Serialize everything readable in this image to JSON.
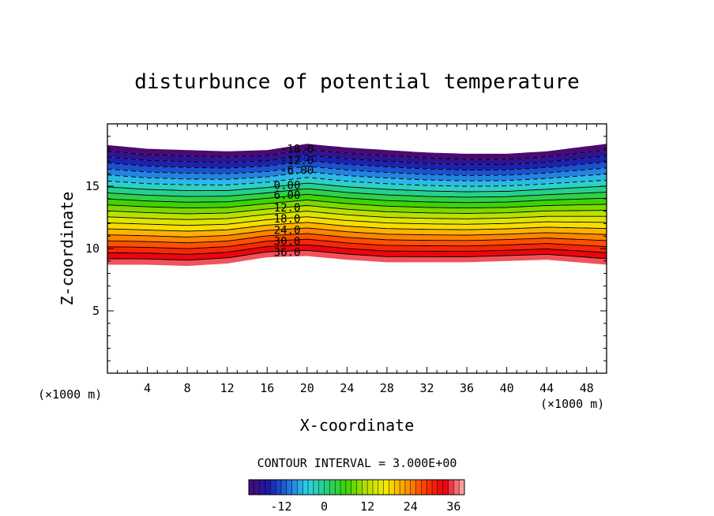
{
  "chart_data": {
    "type": "contour",
    "title": "disturbunce of potential temperature",
    "xlabel": "X-coordinate",
    "ylabel": "Z-coordinate",
    "x_unit_label": "(×1000 m)",
    "y_unit_label": "(×1000 m)",
    "xlim": [
      0,
      50
    ],
    "ylim": [
      0,
      20
    ],
    "x_ticks": [
      4,
      8,
      12,
      16,
      20,
      24,
      28,
      32,
      36,
      40,
      44,
      48
    ],
    "x_tick_labels": [
      "4",
      "8",
      "12",
      "16",
      "20",
      "24",
      "28",
      "32",
      "36",
      "40",
      "44",
      "48"
    ],
    "y_ticks": [
      5,
      10,
      15
    ],
    "y_tick_labels": [
      "5",
      "10",
      "15"
    ],
    "contour_interval_text": "CONTOUR INTERVAL = 3.000E+00",
    "level_min": -21,
    "level_max": 36,
    "level_step": 3,
    "field_top_z": [
      18.3,
      18.0,
      17.9,
      17.8,
      17.9,
      18.4,
      18.1,
      17.9,
      17.7,
      17.6,
      17.6,
      17.8,
      18.4
    ],
    "field_bottom_z": [
      8.7,
      8.7,
      8.6,
      8.8,
      9.3,
      9.4,
      9.1,
      8.9,
      8.9,
      8.9,
      9.0,
      9.1,
      8.7
    ],
    "profile_x": [
      0,
      4,
      8,
      12,
      16,
      20,
      24,
      28,
      32,
      36,
      40,
      44,
      50
    ],
    "contour_labels": [
      {
        "text": "-18.0",
        "x": 19,
        "z": 18.0
      },
      {
        "text": "-12.0",
        "x": 19,
        "z": 17.1
      },
      {
        "text": "-6.00",
        "x": 19,
        "z": 16.3
      },
      {
        "text": "0.00",
        "x": 18,
        "z": 15.1
      },
      {
        "text": "6.00",
        "x": 18,
        "z": 14.3
      },
      {
        "text": "12.0",
        "x": 18,
        "z": 13.3
      },
      {
        "text": "18.0",
        "x": 18,
        "z": 12.4
      },
      {
        "text": "24.0",
        "x": 18,
        "z": 11.5
      },
      {
        "text": "30.0",
        "x": 18,
        "z": 10.6
      },
      {
        "text": "36.0",
        "x": 18,
        "z": 9.7
      }
    ],
    "colorbar_ticks": [
      -12,
      0,
      12,
      24,
      36
    ],
    "colorbar_tick_labels": [
      "-12",
      "0",
      "12",
      "24",
      "36"
    ],
    "colorbar_min": -21,
    "colorbar_max": 39,
    "colorbar_stops": [
      "#4b0a72",
      "#1a1aa8",
      "#1f6fe0",
      "#2fd2e6",
      "#25d07a",
      "#3fd200",
      "#b8e000",
      "#f6e800",
      "#ff9c00",
      "#ff3c00",
      "#e80010",
      "#ffb6b6"
    ]
  }
}
